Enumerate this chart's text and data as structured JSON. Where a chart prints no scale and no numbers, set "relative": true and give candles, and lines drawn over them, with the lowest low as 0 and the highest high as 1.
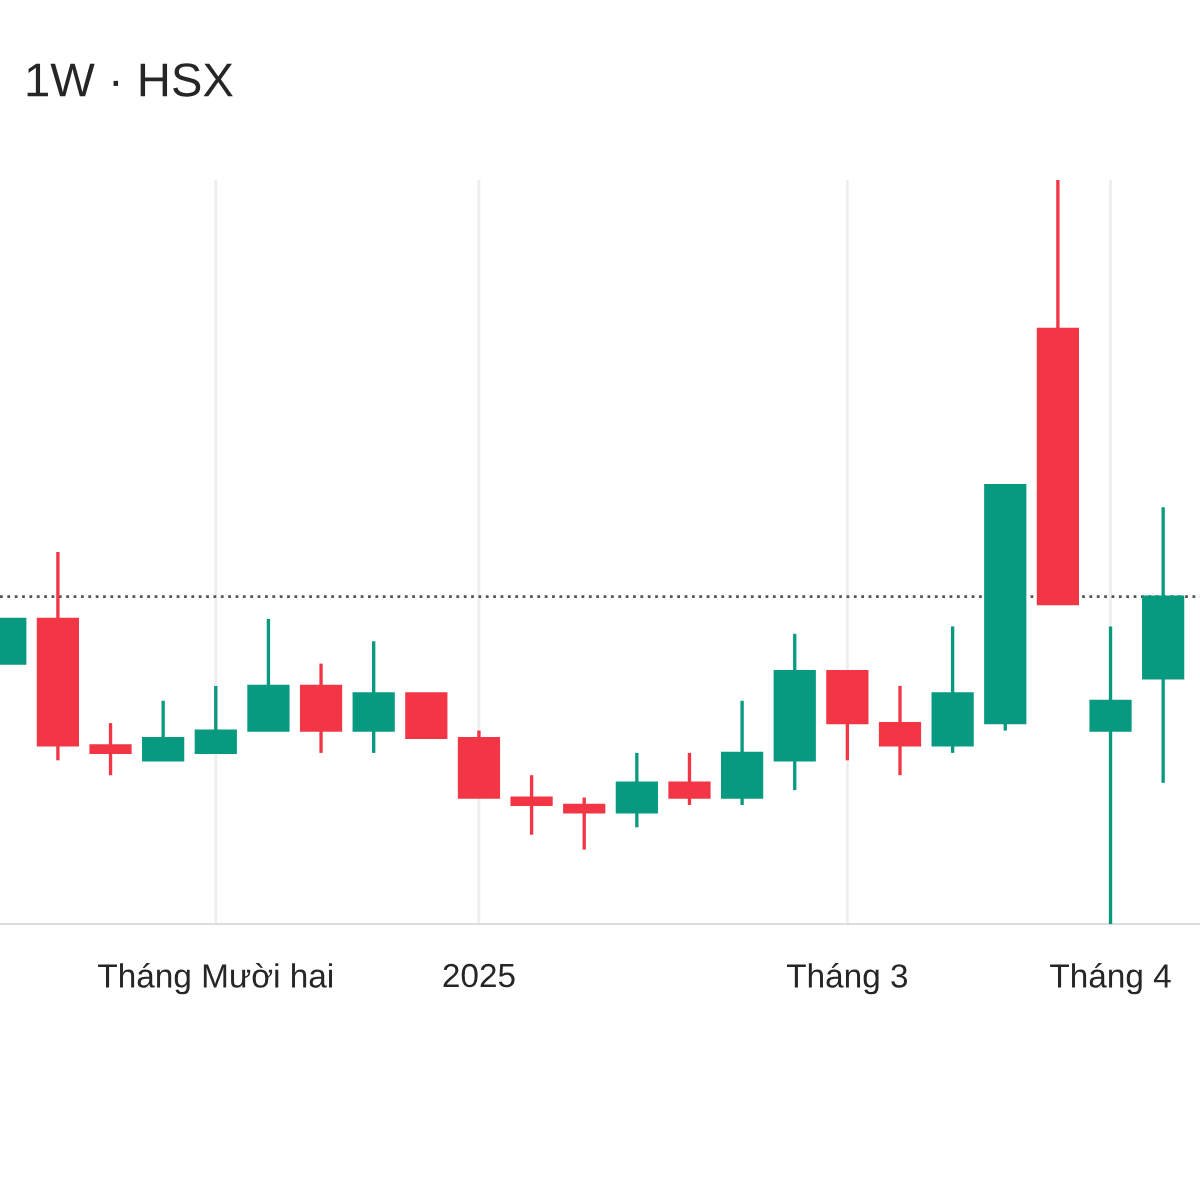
{
  "chart_data": {
    "type": "candlestick",
    "title": "1W · HSX",
    "relative": true,
    "grid": "x",
    "categories": [
      null,
      null,
      null,
      null,
      "Tháng Mười hai",
      null,
      null,
      null,
      null,
      "2025",
      null,
      null,
      null,
      null,
      null,
      null,
      "Tháng 3",
      null,
      null,
      null,
      null,
      "Tháng 4",
      null
    ],
    "colors": [
      "#089981",
      "#f23645",
      "#f23645",
      "#089981",
      "#089981",
      "#089981",
      "#f23645",
      "#089981",
      "#f23645",
      "#f23645",
      "#f23645",
      "#f23645",
      "#089981",
      "#f23645",
      "#089981",
      "#089981",
      "#f23645",
      "#f23645",
      "#089981",
      "#089981",
      "#f23645",
      "#089981",
      "#089981"
    ],
    "ohlc": [
      [
        0.35,
        0.41,
        0.35,
        0.41
      ],
      [
        0.41,
        0.5,
        0.22,
        0.24
      ],
      [
        0.24,
        0.27,
        0.2,
        0.23
      ],
      [
        0.22,
        0.3,
        0.22,
        0.25
      ],
      [
        0.23,
        0.32,
        0.23,
        0.26
      ],
      [
        0.26,
        0.41,
        0.26,
        0.32
      ],
      [
        0.32,
        0.35,
        0.23,
        0.26
      ],
      [
        0.26,
        0.38,
        0.23,
        0.31
      ],
      [
        0.31,
        0.31,
        0.25,
        0.25
      ],
      [
        0.25,
        0.26,
        0.17,
        0.17
      ],
      [
        0.17,
        0.2,
        0.12,
        0.16
      ],
      [
        0.16,
        0.17,
        0.1,
        0.15
      ],
      [
        0.15,
        0.23,
        0.13,
        0.19
      ],
      [
        0.19,
        0.23,
        0.16,
        0.17
      ],
      [
        0.17,
        0.3,
        0.16,
        0.23
      ],
      [
        0.22,
        0.39,
        0.18,
        0.34
      ],
      [
        0.34,
        0.34,
        0.22,
        0.27
      ],
      [
        0.27,
        0.32,
        0.2,
        0.24
      ],
      [
        0.24,
        0.4,
        0.23,
        0.31
      ],
      [
        0.27,
        0.59,
        0.26,
        0.59
      ],
      [
        0.8,
        1.0,
        0.43,
        0.43
      ],
      [
        0.26,
        0.4,
        0.0,
        0.3
      ],
      [
        0.33,
        0.56,
        0.19,
        0.44
      ]
    ],
    "ref_lines": [
      {
        "axis": "y",
        "value": 0.44,
        "color": "#555555",
        "line_style": "dotted"
      }
    ]
  }
}
